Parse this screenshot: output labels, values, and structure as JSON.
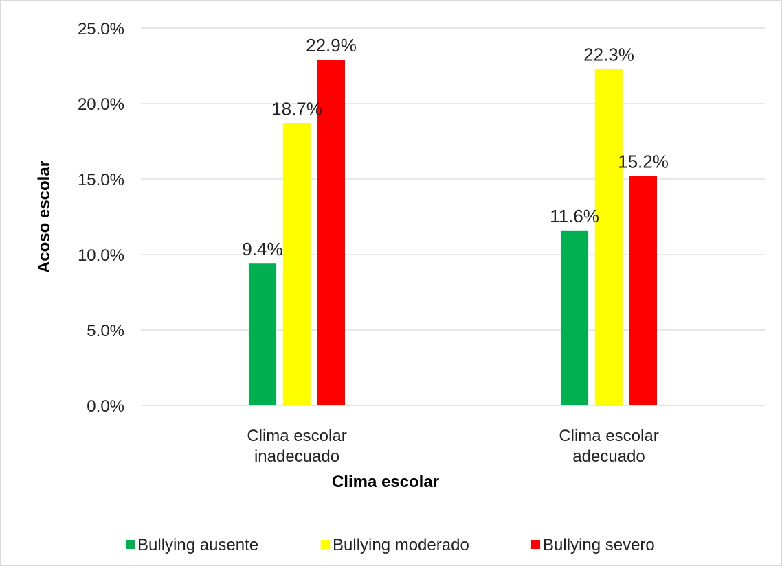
{
  "chart_data": {
    "type": "bar",
    "title": "",
    "xlabel": "Clima escolar",
    "ylabel": "Acoso escolar",
    "categories": [
      [
        "Clima escolar",
        "inadecuado"
      ],
      [
        "Clima escolar",
        "adecuado"
      ]
    ],
    "series": [
      {
        "name": "Bullying ausente",
        "values": [
          9.4,
          11.6
        ],
        "labels": [
          "9.4%",
          "11.6%"
        ],
        "color": "#00b050"
      },
      {
        "name": "Bullying moderado",
        "values": [
          18.7,
          22.3
        ],
        "labels": [
          "18.7%",
          "22.3%"
        ],
        "color": "#ffff00"
      },
      {
        "name": "Bullying severo",
        "values": [
          22.9,
          15.2
        ],
        "labels": [
          "22.9%",
          "15.2%"
        ],
        "color": "#ff0000"
      }
    ],
    "ylim": [
      0,
      25
    ],
    "yticks": [
      0,
      5,
      10,
      15,
      20,
      25
    ],
    "ytick_labels": [
      "0.0%",
      "5.0%",
      "10.0%",
      "15.0%",
      "20.0%",
      "25.0%"
    ],
    "grid": true,
    "legend": "bottom"
  }
}
